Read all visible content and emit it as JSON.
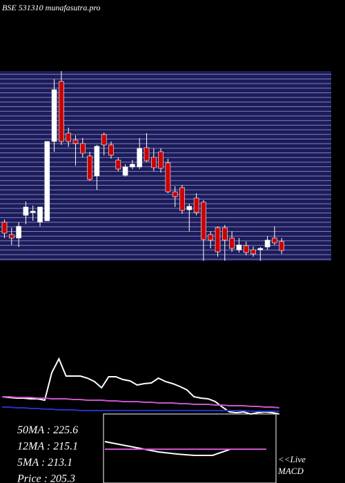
{
  "chart_data": [
    {
      "type": "candlestick",
      "title": "BSE 531310 munafasutra.pro",
      "up_color": "#ffffff",
      "down_color": "#cc0000",
      "ylim": [
        190,
        465
      ],
      "open": [
        246,
        228,
        223,
        256,
        260,
        246,
        248,
        363,
        450,
        375,
        365,
        360,
        342,
        313,
        373,
        358,
        336,
        314,
        326,
        326,
        354,
        340,
        348,
        332,
        290,
        296,
        264,
        281,
        275,
        228,
        238,
        238,
        223,
        206,
        212,
        206,
        206,
        210,
        223,
        218
      ],
      "high": [
        250,
        238,
        246,
        276,
        270,
        268,
        363,
        453,
        465,
        383,
        372,
        368,
        348,
        358,
        376,
        363,
        340,
        330,
        336,
        368,
        375,
        353,
        353,
        338,
        298,
        300,
        273,
        288,
        278,
        233,
        240,
        242,
        233,
        223,
        218,
        211,
        210,
        226,
        240,
        223
      ],
      "low": [
        223,
        213,
        210,
        243,
        248,
        240,
        248,
        348,
        358,
        355,
        328,
        340,
        306,
        293,
        343,
        338,
        320,
        312,
        323,
        323,
        333,
        320,
        318,
        288,
        268,
        258,
        233,
        256,
        190,
        208,
        196,
        190,
        203,
        202,
        198,
        196,
        190,
        206,
        213,
        200
      ],
      "close": [
        230,
        223,
        240,
        268,
        262,
        268,
        363,
        438,
        363,
        363,
        360,
        346,
        308,
        356,
        358,
        343,
        323,
        326,
        330,
        353,
        335,
        325,
        324,
        290,
        283,
        263,
        269,
        260,
        221,
        220,
        203,
        220,
        208,
        213,
        202,
        200,
        208,
        220,
        216,
        205
      ]
    },
    {
      "type": "line",
      "ylim": [
        0,
        85
      ],
      "annotations": [
        "50MA : 225.6",
        "12MA : 215.1",
        "5MA : 213.1",
        "Price   : 205.3"
      ],
      "series": [
        {
          "color": "#ffffff",
          "values": [
            25,
            24,
            23,
            23,
            22,
            22,
            20,
            60,
            80,
            55,
            55,
            55,
            52,
            47,
            38,
            54,
            54,
            50,
            48,
            42,
            44,
            45,
            52,
            47,
            44,
            40,
            35,
            25,
            23,
            22,
            18,
            10,
            3,
            2,
            3,
            0,
            2,
            3,
            2,
            0
          ]
        },
        {
          "color": "#cc55cc",
          "values": [
            25,
            25,
            24,
            24,
            24,
            23,
            23,
            22,
            22,
            22,
            21,
            21,
            20,
            20,
            20,
            19,
            19,
            18,
            18,
            18,
            17,
            17,
            16,
            16,
            16,
            15,
            15,
            14,
            14,
            14,
            13,
            13,
            12,
            12,
            12,
            11,
            11,
            10,
            10,
            9
          ]
        },
        {
          "color": "#2233cc",
          "values": [
            10,
            10,
            9,
            9,
            8,
            8,
            7,
            7,
            6,
            6,
            6,
            5,
            5,
            5,
            5,
            5,
            5,
            5,
            5,
            5,
            5,
            5,
            5,
            5,
            5,
            5,
            5,
            5,
            5,
            5,
            5,
            5,
            5,
            5,
            5,
            4,
            4,
            4,
            4,
            4
          ]
        }
      ]
    },
    {
      "type": "line",
      "ylim": [
        -50,
        50
      ],
      "annotations": [
        "<<Live",
        "MACD"
      ],
      "series": [
        {
          "color": "#ffffff",
          "values": [
            10,
            5,
            0,
            -5,
            -8,
            -10,
            -10,
            -1,
            -1,
            -1
          ]
        },
        {
          "color": "#cc55cc",
          "values": [
            -1,
            -1,
            -1,
            -1,
            -1,
            -1,
            -1,
            -1,
            -1,
            -1
          ]
        }
      ]
    }
  ]
}
